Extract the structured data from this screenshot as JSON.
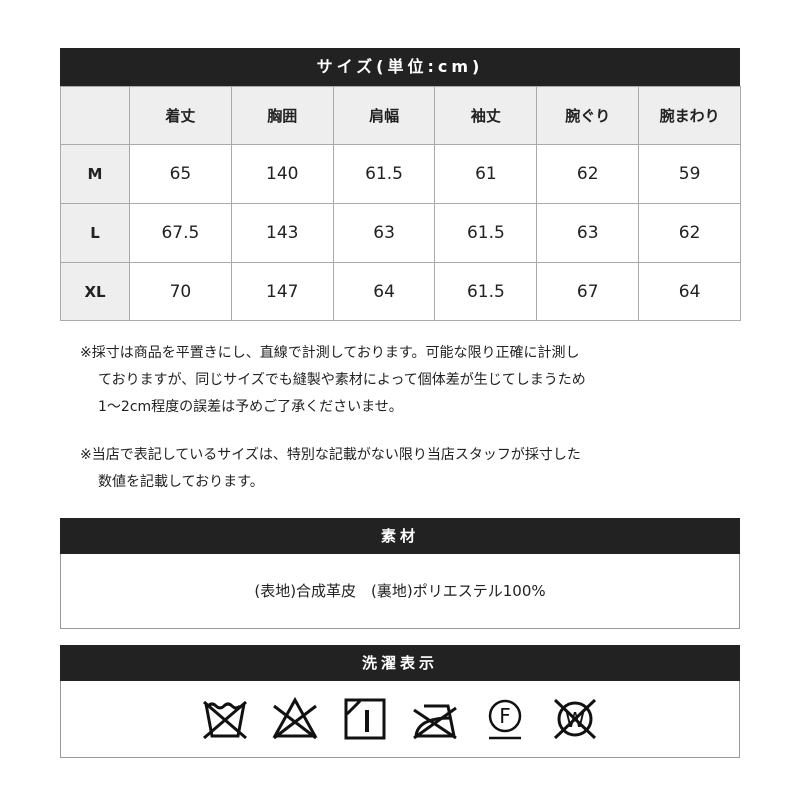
{
  "size_section": {
    "title": "サイズ(単位:cm)",
    "columns": [
      "",
      "着丈",
      "胸囲",
      "肩幅",
      "袖丈",
      "腕ぐり",
      "腕まわり"
    ],
    "rows": [
      {
        "size": "M",
        "values": [
          "65",
          "140",
          "61.5",
          "61",
          "62",
          "59"
        ]
      },
      {
        "size": "L",
        "values": [
          "67.5",
          "143",
          "63",
          "61.5",
          "63",
          "62"
        ]
      },
      {
        "size": "XL",
        "values": [
          "70",
          "147",
          "64",
          "61.5",
          "67",
          "64"
        ]
      }
    ]
  },
  "notes": [
    [
      "※採寸は商品を平置きにし、直線で計測しております。可能な限り正確に計測し",
      "ておりますが、同じサイズでも縫製や素材によって個体差が生じてしまうため",
      "1～2cm程度の誤差は予めご了承くださいませ。"
    ],
    [
      "※当店で表記しているサイズは、特別な記載がない限り当店スタッフが採寸した",
      "数値を記載しております。"
    ]
  ],
  "material_section": {
    "title": "素材",
    "text": "(表地)合成革皮　(裏地)ポリエステル100%"
  },
  "care_section": {
    "title": "洗濯表示",
    "icons": [
      "no-wash-icon",
      "no-bleach-icon",
      "tumble-dry-icon",
      "no-iron-icon",
      "dry-clean-f-icon",
      "no-wet-clean-icon"
    ]
  }
}
